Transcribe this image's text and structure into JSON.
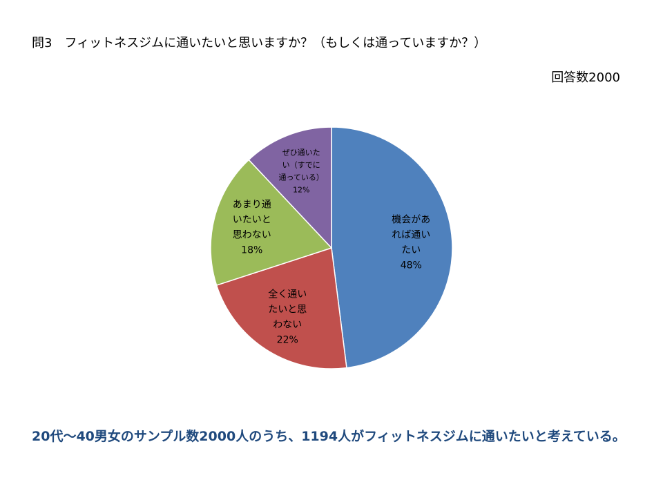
{
  "header": {
    "question": "問3　フィットネスジムに通いたいと思いますか？（もしくは通っていますか？）",
    "sample_size": "回答数2000"
  },
  "chart_data": {
    "type": "pie",
    "start_angle_deg": 0,
    "direction": "clockwise",
    "slices": [
      {
        "label_lines": [
          "機会があ",
          "れば通い",
          "たい"
        ],
        "percent_label": "48%",
        "value": 48,
        "color": "#4f81bd"
      },
      {
        "label_lines": [
          "全く通い",
          "たいと思",
          "わない"
        ],
        "percent_label": "22%",
        "value": 22,
        "color": "#c0504d"
      },
      {
        "label_lines": [
          "あまり通",
          "いたいと",
          "思わない"
        ],
        "percent_label": "18%",
        "value": 18,
        "color": "#9bbb59"
      },
      {
        "label_lines": [
          "ぜひ通いた",
          "い（すでに",
          "通っている）"
        ],
        "percent_label": "12%",
        "value": 12,
        "color": "#8064a2"
      }
    ]
  },
  "footer": {
    "summary": "20代～40男女のサンプル数2000人のうち、1194人がフィットネスジムに通いたいと考えている。"
  }
}
